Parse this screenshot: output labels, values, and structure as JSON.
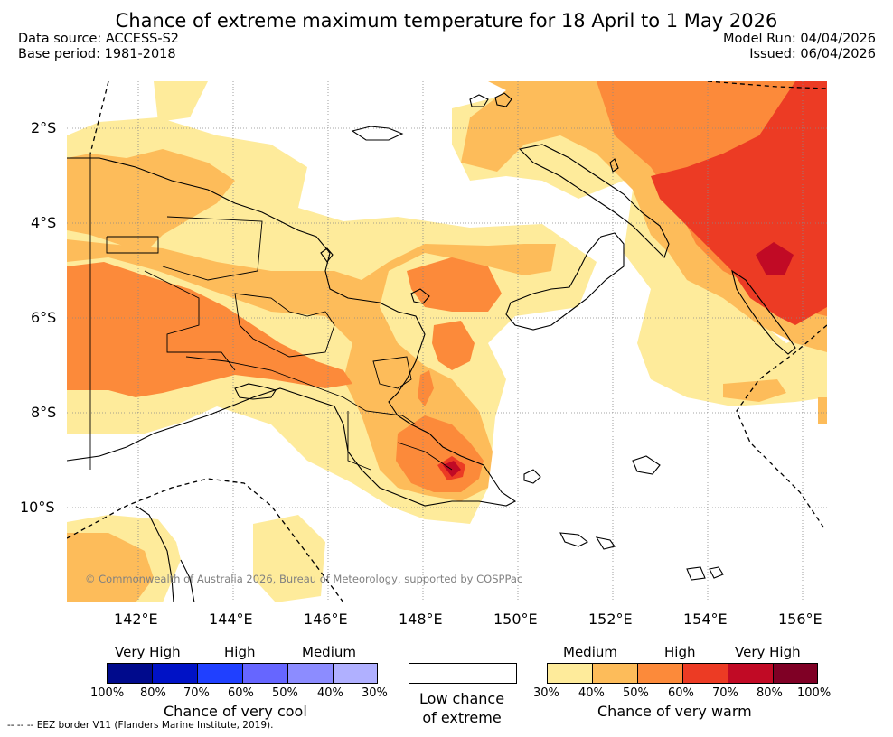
{
  "header": {
    "title": "Chance of extreme maximum temperature for 18 April to 1 May 2026",
    "data_source": "Data source: ACCESS-S2",
    "base_period": "Base period: 1981-2018",
    "model_run": "Model Run: 04/04/2026",
    "issued": "Issued: 06/04/2026"
  },
  "map": {
    "lat_labels": [
      "2°S",
      "4°S",
      "6°S",
      "8°S",
      "10°S"
    ],
    "lon_labels": [
      "142°E",
      "144°E",
      "146°E",
      "148°E",
      "150°E",
      "152°E",
      "154°E",
      "156°E"
    ],
    "copyright": "© Commonwealth of Australia 2026, Bureau of Meteorology, supported by COSPPac",
    "colors": {
      "warm_30": "#feeb9b",
      "warm_40": "#fdbc5a",
      "warm_50": "#fc8a3a",
      "warm_60": "#ec3b24",
      "warm_70": "#c10a25",
      "warm_80": "#7f0025",
      "land_line": "#000000",
      "grid": "#888888"
    }
  },
  "legend": {
    "cool": {
      "levels": [
        "Very High",
        "High",
        "Medium"
      ],
      "caption": "Chance of very cool",
      "ticks": [
        "100%",
        "80%",
        "70%",
        "60%",
        "50%",
        "40%",
        "30%"
      ],
      "colors": [
        "#000a8c",
        "#0012c6",
        "#2040ff",
        "#6666ff",
        "#8c8cff",
        "#b0b0ff"
      ]
    },
    "neutral": {
      "caption_line1": "Low chance",
      "caption_line2": "of extreme"
    },
    "warm": {
      "levels": [
        "Medium",
        "High",
        "Very High"
      ],
      "caption": "Chance of very warm",
      "ticks": [
        "30%",
        "40%",
        "50%",
        "60%",
        "70%",
        "80%",
        "100%"
      ],
      "colors": [
        "#feeb9b",
        "#fdbc5a",
        "#fc8a3a",
        "#ec3b24",
        "#c10a25",
        "#7f0025"
      ]
    }
  },
  "footnote": "-- -- -- EEZ border V11 (Flanders Marine Institute, 2019)."
}
